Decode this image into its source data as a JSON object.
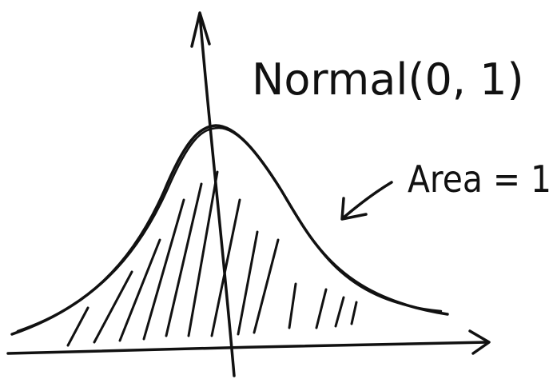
{
  "title": "Normal(0, 1)",
  "annotation": "Area = 1"
}
